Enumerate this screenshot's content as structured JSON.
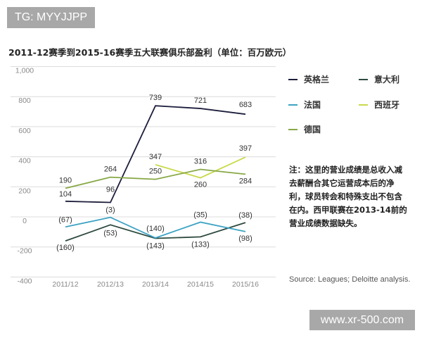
{
  "watermarks": {
    "top": "TG: MYYJJPP",
    "bottom": "www.xr-500.com"
  },
  "chart_data": {
    "type": "line",
    "title": "2011-12赛季到2015-16赛季五大联赛俱乐部盈利（单位：百万欧元）",
    "categories": [
      "2011/12",
      "2012/13",
      "2013/14",
      "2014/15",
      "2015/16"
    ],
    "y_ticks": [
      1000,
      800,
      600,
      400,
      200,
      0,
      -200,
      -400
    ],
    "y_tick_labels": [
      "1,000",
      "800",
      "600",
      "400",
      "200",
      "0",
      "-200",
      "-400"
    ],
    "ylim": [
      -400,
      1000
    ],
    "grid": true,
    "negative_format": "parentheses",
    "legend_position": "right",
    "series": [
      {
        "name": "英格兰",
        "color": "#1d1e3c",
        "values": [
          104,
          96,
          739,
          721,
          683
        ]
      },
      {
        "name": "意大利",
        "color": "#2e4a3e",
        "values": [
          -160,
          -53,
          -143,
          -133,
          -38
        ]
      },
      {
        "name": "法国",
        "color": "#3ea3c4",
        "values": [
          -67,
          -3,
          -140,
          -35,
          -98
        ]
      },
      {
        "name": "西班牙",
        "color": "#c9da4c",
        "values": [
          null,
          null,
          347,
          260,
          397
        ]
      },
      {
        "name": "德国",
        "color": "#88a847",
        "values": [
          190,
          264,
          250,
          316,
          284
        ]
      }
    ],
    "note": "注：这里的营业成绩是总收入减去薪酬合其它运营成本后的净利，球员转会和特殊支出不包含在内。西甲联赛在2013-14前的营业成绩数据缺失。",
    "source": "Source: Leagues; Deloitte analysis."
  }
}
